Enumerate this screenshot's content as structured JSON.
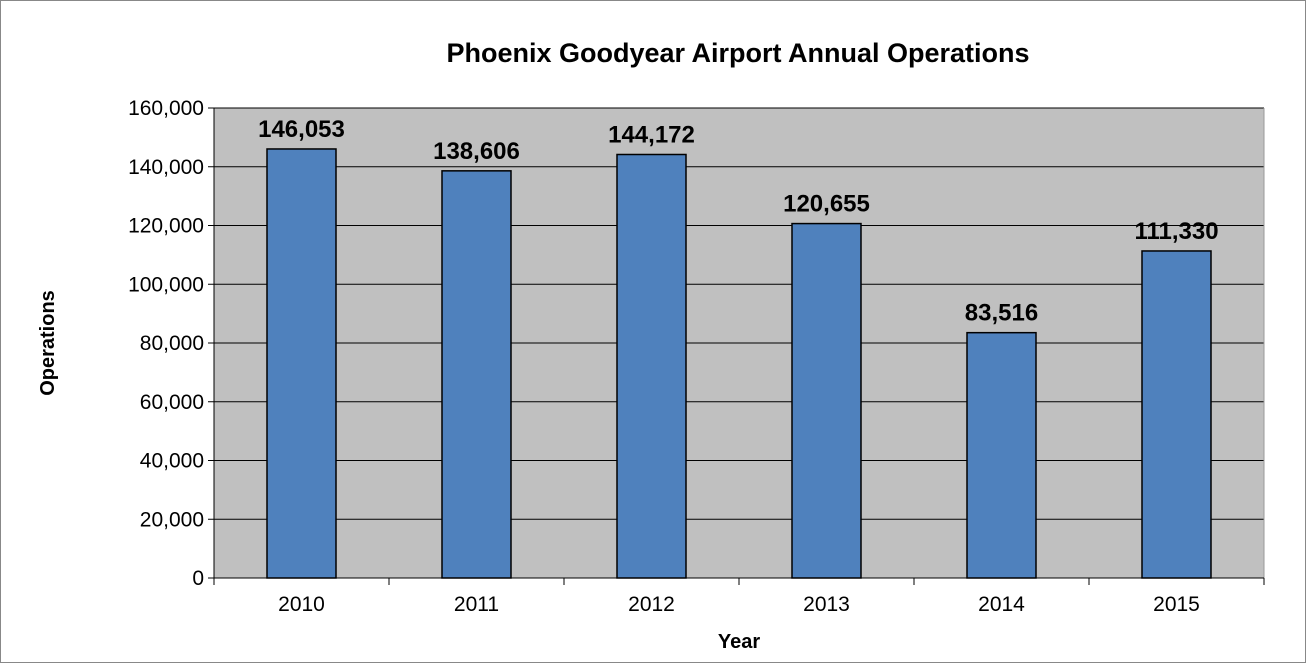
{
  "chart_data": {
    "type": "bar",
    "title": "Phoenix Goodyear Airport Annual Operations",
    "xlabel": "Year",
    "ylabel": "Operations",
    "categories": [
      "2010",
      "2011",
      "2012",
      "2013",
      "2014",
      "2015"
    ],
    "values": [
      146053,
      138606,
      144172,
      120655,
      83516,
      111330
    ],
    "data_labels": [
      "146,053",
      "138,606",
      "144,172",
      "120,655",
      "83,516",
      "111,330"
    ],
    "ylim": [
      0,
      160000
    ],
    "yticks": [
      0,
      20000,
      40000,
      60000,
      80000,
      100000,
      120000,
      140000,
      160000
    ],
    "ytick_labels": [
      "0",
      "20,000",
      "40,000",
      "60,000",
      "80,000",
      "100,000",
      "120,000",
      "140,000",
      "160,000"
    ],
    "grid": true,
    "legend": "none",
    "colors": {
      "bar": "#4f81bd",
      "bar_border": "#000000",
      "plot_background": "#c0c0c0",
      "gridline": "#000000"
    }
  }
}
